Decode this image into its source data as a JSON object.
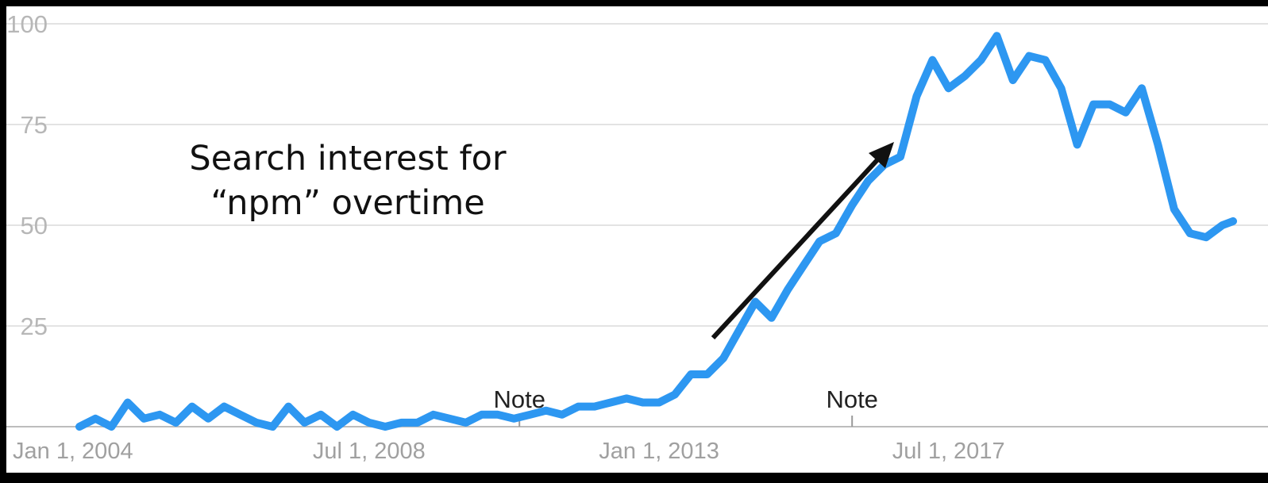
{
  "chart_data": {
    "type": "line",
    "title": "",
    "xlabel": "",
    "ylabel": "",
    "ylim": [
      0,
      100
    ],
    "yticks": [
      "25",
      "50",
      "75",
      "100"
    ],
    "xticks": [
      {
        "label": "Jan 1, 2004",
        "date": "2004-01-01"
      },
      {
        "label": "Jul 1, 2008",
        "date": "2008-07-01"
      },
      {
        "label": "Jan 1, 2013",
        "date": "2013-01-01"
      },
      {
        "label": "Jul 1, 2017",
        "date": "2017-07-01"
      }
    ],
    "grid": true,
    "line_color": "#2d97f1",
    "notes": [
      {
        "label": "Note",
        "date": "2010-11-01"
      },
      {
        "label": "Note",
        "date": "2016-01-01"
      }
    ],
    "annotation": {
      "lines": [
        "Search interest for",
        "“npm” overtime"
      ]
    },
    "series": [
      {
        "x": [
          "2004-01-01",
          "2004-04-01",
          "2004-07-01",
          "2004-10-01",
          "2005-01-01",
          "2005-04-01",
          "2005-07-01",
          "2005-10-01",
          "2006-01-01",
          "2006-04-01",
          "2006-07-01",
          "2006-10-01",
          "2007-01-01",
          "2007-04-01",
          "2007-07-01",
          "2007-10-01",
          "2008-01-01",
          "2008-04-01",
          "2008-07-01",
          "2008-10-01",
          "2009-01-01",
          "2009-04-01",
          "2009-07-01",
          "2009-10-01",
          "2010-01-01",
          "2010-04-01",
          "2010-07-01",
          "2010-10-01",
          "2011-01-01",
          "2011-04-01",
          "2011-07-01",
          "2011-10-01",
          "2012-01-01",
          "2012-04-01",
          "2012-07-01",
          "2012-10-01",
          "2013-01-01",
          "2013-04-01",
          "2013-07-01",
          "2013-10-01",
          "2014-01-01",
          "2014-04-01",
          "2014-07-01",
          "2014-10-01",
          "2015-01-01",
          "2015-04-01",
          "2015-07-01",
          "2015-10-01",
          "2016-01-01",
          "2016-04-01",
          "2016-07-01",
          "2016-10-01",
          "2017-01-01",
          "2017-04-01",
          "2017-07-01",
          "2017-10-01",
          "2018-01-01",
          "2018-04-01",
          "2018-07-01",
          "2018-10-01",
          "2019-01-01",
          "2019-04-01",
          "2019-07-01",
          "2019-10-01",
          "2020-01-01",
          "2020-04-01",
          "2020-07-01",
          "2020-10-01",
          "2021-01-01",
          "2021-04-01",
          "2021-07-01",
          "2021-10-01",
          "2021-12-01"
        ],
        "values": [
          0,
          2,
          0,
          6,
          2,
          3,
          1,
          5,
          2,
          5,
          3,
          1,
          0,
          5,
          1,
          3,
          0,
          3,
          1,
          0,
          1,
          1,
          3,
          2,
          1,
          3,
          3,
          2,
          3,
          4,
          3,
          5,
          5,
          6,
          7,
          6,
          6,
          8,
          13,
          13,
          17,
          24,
          31,
          27,
          34,
          40,
          46,
          48,
          55,
          61,
          65,
          67,
          82,
          91,
          84,
          87,
          91,
          97,
          86,
          92,
          91,
          84,
          70,
          80,
          80,
          78,
          84,
          70,
          54,
          48,
          47,
          50,
          51
        ]
      }
    ]
  }
}
